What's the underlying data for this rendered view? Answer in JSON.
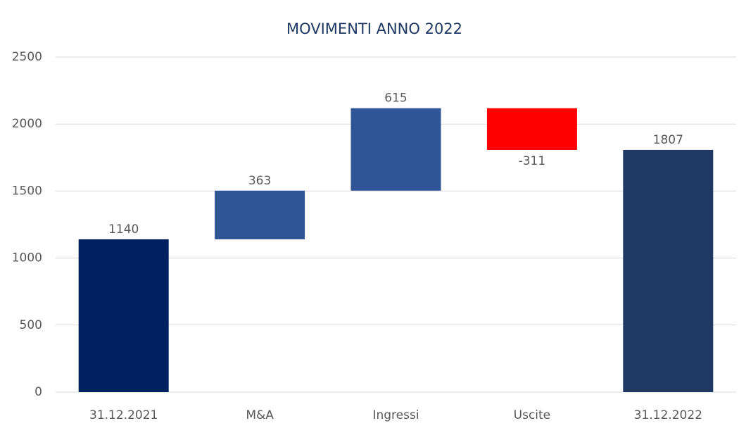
{
  "chart_data": {
    "type": "waterfall",
    "title": "MOVIMENTI ANNO 2022",
    "categories": [
      "31.12.2021",
      "M&A",
      "Ingressi",
      "Uscite",
      "31.12.2022"
    ],
    "values": [
      1140,
      363,
      615,
      -311,
      1807
    ],
    "totals": [
      true,
      false,
      false,
      false,
      true
    ],
    "colors": [
      "#002060",
      "#2f5597",
      "#2f5597",
      "#ff0000",
      "#203864"
    ],
    "ylim": [
      0,
      2500
    ],
    "yticks": [
      0,
      500,
      1000,
      1500,
      2000,
      2500
    ],
    "grid": true
  }
}
